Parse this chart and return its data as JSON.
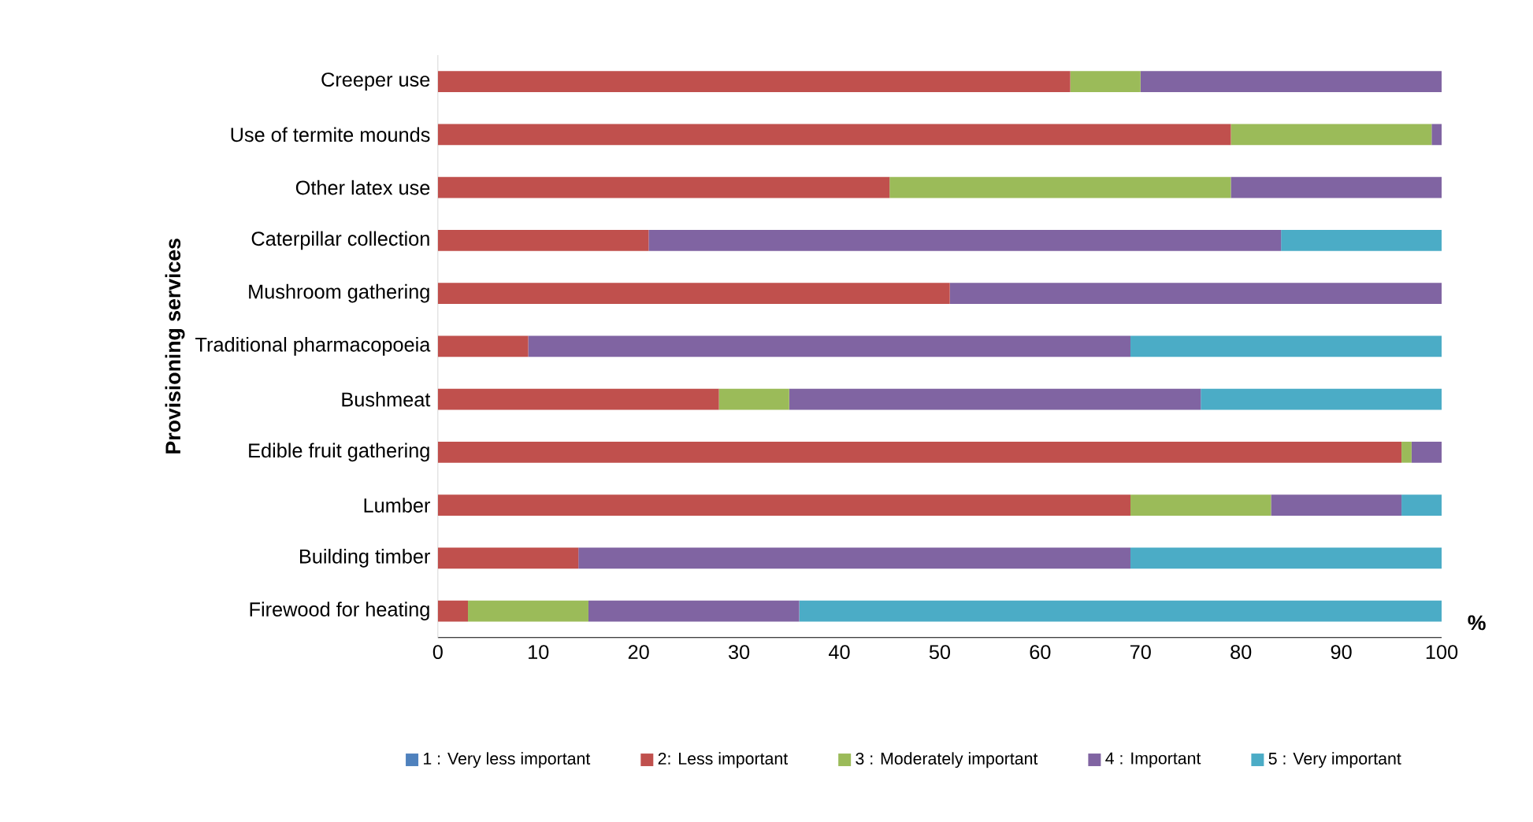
{
  "chart_data": {
    "type": "bar",
    "orientation": "horizontal",
    "stacked": true,
    "xlabel": "%",
    "ylabel": "Provisioning services",
    "categories": [
      "Creeper use",
      "Use of termite mounds",
      "Other latex use",
      "Caterpillar collection",
      "Mushroom gathering",
      "Traditional pharmacopoeia",
      "Bushmeat",
      "Edible fruit gathering",
      "Lumber",
      "Building timber",
      "Firewood for heating"
    ],
    "series": [
      {
        "name": "1 : Very less important",
        "color": "#4f81bd",
        "values": [
          0,
          0,
          0,
          0,
          0,
          0,
          0,
          0,
          0,
          0,
          0
        ]
      },
      {
        "name": "2:  Less important",
        "color": "#c0504d",
        "values": [
          63,
          79,
          45,
          21,
          51,
          9,
          28,
          96,
          69,
          14,
          3
        ]
      },
      {
        "name": "3 : Moderately important",
        "color": "#9bbb59",
        "values": [
          7,
          20,
          34,
          0,
          0,
          0,
          7,
          1,
          14,
          0,
          12
        ]
      },
      {
        "name": "4 : Important",
        "color": "#8064a2",
        "values": [
          30,
          1,
          21,
          63,
          49,
          60,
          41,
          3,
          13,
          55,
          21
        ]
      },
      {
        "name": "5 : Very important",
        "color": "#4bacc6",
        "values": [
          0,
          0,
          0,
          16,
          0,
          31,
          24,
          0,
          4,
          31,
          64
        ]
      }
    ],
    "xlim": [
      0,
      100
    ],
    "xticks": [
      0,
      10,
      20,
      30,
      40,
      50,
      60,
      70,
      80,
      90,
      100
    ],
    "legend": "bottom"
  }
}
